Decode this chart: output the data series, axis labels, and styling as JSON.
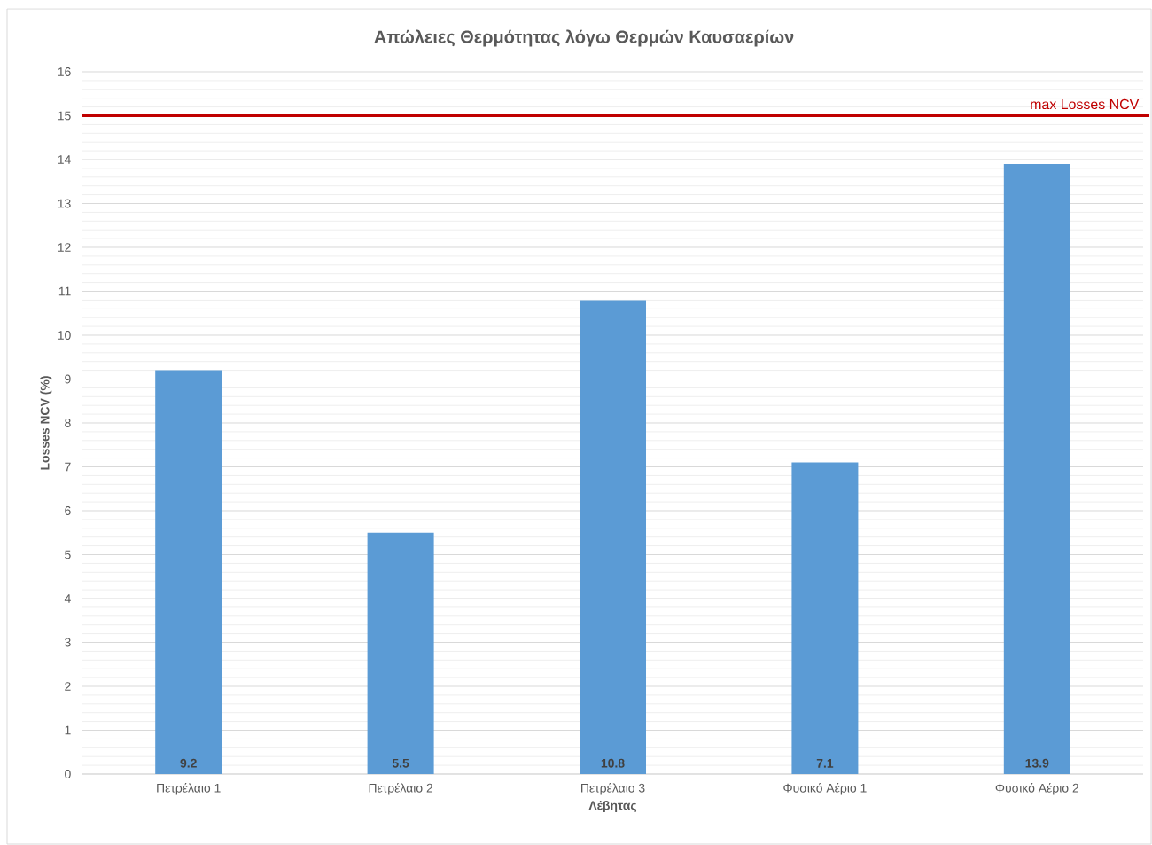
{
  "chart_data": {
    "type": "bar",
    "title": "Απώλειες Θερμότητας λόγω Θερμών Καυσαερίων",
    "xlabel": "Λέβητας",
    "ylabel": "Losses NCV (%)",
    "categories": [
      "Πετρέλαιο 1",
      "Πετρέλαιο 2",
      "Πετρέλαιο 3",
      "Φυσικό Αέριο 1",
      "Φυσικό Αέριο 2"
    ],
    "values": [
      9.2,
      5.5,
      10.8,
      7.1,
      13.9
    ],
    "color": "#5b9bd5",
    "data_labels": true,
    "ylim": [
      0,
      16
    ],
    "yticks": [
      0,
      1,
      2,
      3,
      4,
      5,
      6,
      7,
      8,
      9,
      10,
      11,
      12,
      13,
      14,
      15,
      16
    ],
    "grid": "y",
    "ref_lines": [
      {
        "axis": "y",
        "value": 15,
        "label": "max Losses NCV",
        "color": "#c00000"
      }
    ]
  }
}
